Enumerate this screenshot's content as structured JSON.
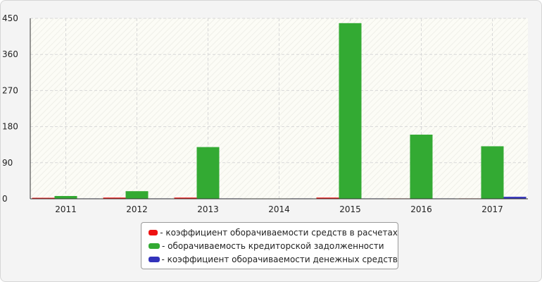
{
  "chart_data": {
    "type": "bar",
    "categories": [
      "2011",
      "2012",
      "2013",
      "2014",
      "2015",
      "2016",
      "2017"
    ],
    "series": [
      {
        "name": "- коэффициент оборачиваемости средств в расчетах",
        "color": "#ee1111",
        "values": [
          2.5,
          3,
          3,
          0,
          3,
          1,
          1
        ]
      },
      {
        "name": "- оборачиваемость кредиторской задолженности",
        "color": "#33aa33",
        "values": [
          7,
          19,
          129,
          0,
          438,
          160,
          131
        ]
      },
      {
        "name": "- коэффициент оборачиваемости денежных средств",
        "color": "#3333bb",
        "values": [
          1,
          1,
          1,
          1,
          1,
          1,
          5
        ]
      }
    ],
    "yticks": [
      "0",
      "90",
      "180",
      "270",
      "360",
      "450"
    ],
    "ylim": [
      0,
      450
    ],
    "grid": true,
    "legend_position": "bottom"
  }
}
